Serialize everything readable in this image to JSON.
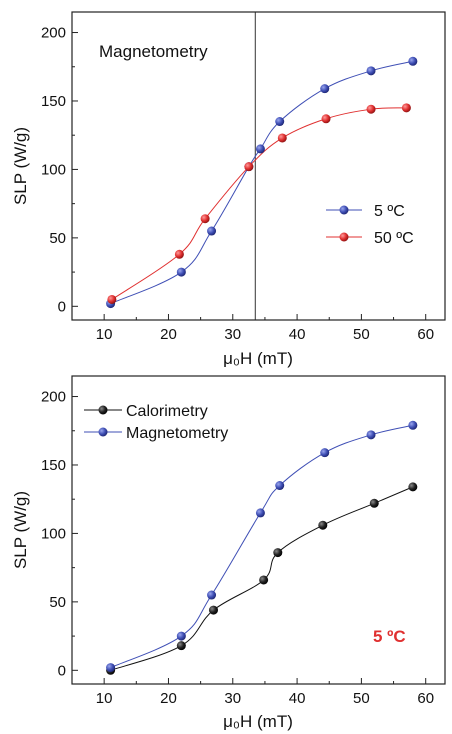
{
  "chart_data": [
    {
      "type": "scatter",
      "annotation": "Magnetometry",
      "xlabel": "μ₀H (mT)",
      "ylabel": "SLP (W/g)",
      "xlim": [
        5,
        63
      ],
      "ylim": [
        -10,
        215
      ],
      "x_ticks": [
        10,
        20,
        30,
        40,
        50,
        60
      ],
      "y_ticks": [
        0,
        50,
        100,
        150,
        200
      ],
      "vertical_line_x": 33.5,
      "legend_position": "right",
      "series": [
        {
          "name": "5 ºC",
          "color": "#3f4fb5",
          "x": [
            11,
            22,
            26.7,
            32.5,
            34.3,
            37.3,
            44.3,
            51.5,
            58
          ],
          "y": [
            2,
            25,
            55,
            102,
            115,
            135,
            159,
            172,
            179
          ]
        },
        {
          "name": "50 ºC",
          "color": "#e03030",
          "x": [
            11.2,
            21.7,
            25.7,
            32.5,
            37.7,
            44.5,
            51.5,
            57
          ],
          "y": [
            5,
            38,
            64,
            102,
            123,
            137,
            144,
            145
          ]
        }
      ]
    },
    {
      "type": "scatter",
      "annotation": "5 ºC",
      "annotation_color": "#e03030",
      "xlabel": "μ₀H (mT)",
      "ylabel": "SLP (W/g)",
      "xlim": [
        5,
        63
      ],
      "ylim": [
        -10,
        215
      ],
      "x_ticks": [
        10,
        20,
        30,
        40,
        50,
        60
      ],
      "y_ticks": [
        0,
        50,
        100,
        150,
        200
      ],
      "legend_position": "top-left",
      "series": [
        {
          "name": "Calorimetry",
          "color": "#111111",
          "x": [
            11,
            22,
            27,
            34.8,
            37,
            44,
            52,
            58
          ],
          "y": [
            0,
            18,
            44,
            66,
            86,
            106,
            122,
            134
          ]
        },
        {
          "name": "Magnetometry",
          "color": "#3f4fb5",
          "x": [
            11,
            22,
            26.7,
            34.3,
            37.3,
            44.3,
            51.5,
            58
          ],
          "y": [
            2,
            25,
            55,
            115,
            135,
            159,
            172,
            179
          ]
        }
      ]
    }
  ]
}
